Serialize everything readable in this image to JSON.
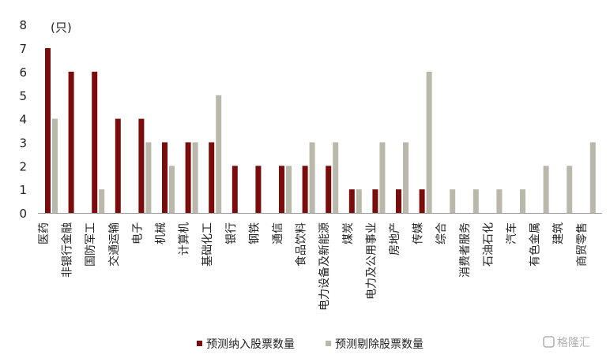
{
  "chart_data": {
    "type": "bar",
    "title": "",
    "unit_label": "(只)",
    "ylim": [
      0,
      8
    ],
    "yticks": [
      0,
      1,
      2,
      3,
      4,
      5,
      6,
      7,
      8
    ],
    "grid": false,
    "legend_position": "bottom",
    "categories": [
      "医药",
      "非银行金融",
      "国防军工",
      "交通运输",
      "电子",
      "机械",
      "计算机",
      "基础化工",
      "银行",
      "钢铁",
      "通信",
      "食品饮料",
      "电力设备及新能源",
      "煤炭",
      "电力及公用事业",
      "房地产",
      "传媒",
      "综合",
      "消费者服务",
      "石油石化",
      "汽车",
      "有色金属",
      "建筑",
      "商贸零售"
    ],
    "series": [
      {
        "name": "预测纳入股票数量",
        "color": "#7b0c0c",
        "values": [
          7,
          6,
          6,
          4,
          4,
          3,
          3,
          3,
          2,
          2,
          2,
          2,
          2,
          1,
          1,
          1,
          1,
          0,
          0,
          0,
          0,
          0,
          0,
          0
        ]
      },
      {
        "name": "预测剔除股票数量",
        "color": "#b9b8aa",
        "values": [
          4,
          0,
          1,
          0,
          3,
          2,
          3,
          5,
          0,
          0,
          2,
          3,
          3,
          1,
          3,
          3,
          6,
          1,
          1,
          1,
          1,
          2,
          2,
          3
        ]
      }
    ]
  },
  "watermark": "格隆汇"
}
